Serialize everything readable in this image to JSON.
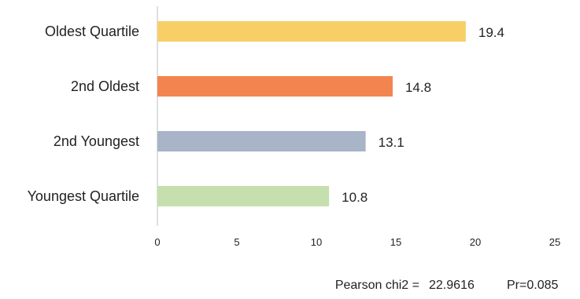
{
  "chart_data": {
    "type": "bar",
    "orientation": "horizontal",
    "categories": [
      "Oldest Quartile",
      "2nd Oldest",
      "2nd Youngest",
      "Youngest Quartile"
    ],
    "values": [
      19.4,
      14.8,
      13.1,
      10.8
    ],
    "value_labels": [
      "19.4",
      "14.8",
      "13.1",
      "10.8"
    ],
    "colors": [
      "#F7CF66",
      "#F3844F",
      "#A8B4C7",
      "#C5DFAE"
    ],
    "xlim": [
      0,
      25
    ],
    "x_ticks": [
      0,
      5,
      10,
      15,
      20,
      25
    ],
    "x_tick_labels": [
      "0",
      "5",
      "10",
      "15",
      "20",
      "25"
    ],
    "grid": false,
    "title": "",
    "xlabel": "",
    "ylabel": "",
    "annotations": {
      "pearson_chi2": "Pearson chi2 =",
      "pearson_chi2_value": "22.9616",
      "pr": "Pr=0.085"
    }
  }
}
